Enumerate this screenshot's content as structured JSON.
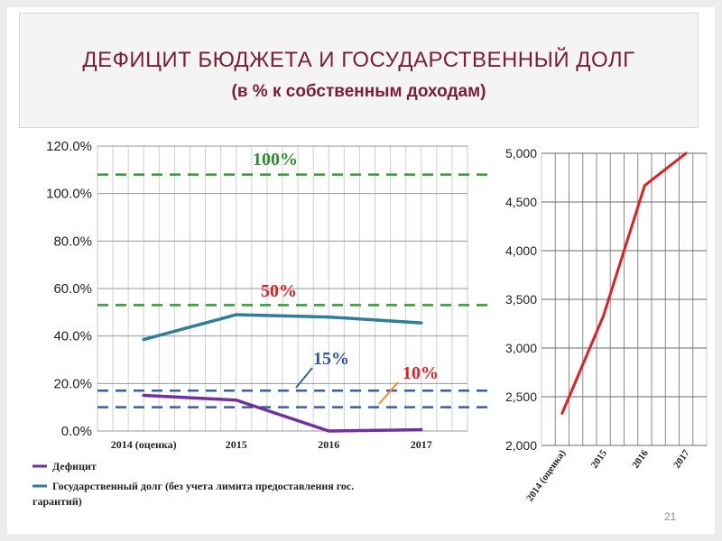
{
  "title": {
    "line1": "ДЕФИЦИТ БЮДЖЕТА И ГОСУДАРСТВЕННЫЙ ДОЛГ",
    "line2": "(в % к собственным доходам)"
  },
  "page_number": "21",
  "colors": {
    "title": "#7a1d38",
    "deficit": "#7030a0",
    "debt": "#2e7d9c",
    "green_dash": "#2ca02c",
    "blue_dash": "#3a5f9e",
    "right_line": "#e02020",
    "label_red": "#e02020",
    "label_blue": "#2f5597",
    "label_green": "#2e8b2e",
    "arrow_orange": "#f08a2a"
  },
  "chart_data": [
    {
      "type": "line",
      "categories": [
        "2014 (оценка)",
        "2015",
        "2016",
        "2017"
      ],
      "series": [
        {
          "name": "Дефицит",
          "color": "#7030a0",
          "values": [
            15,
            13,
            0,
            0.5
          ]
        },
        {
          "name": "Государственный долг (без учета лимита предоставления гос. гарантий)",
          "color": "#2e7d9c",
          "values": [
            38.5,
            49,
            48,
            45.5
          ]
        }
      ],
      "yticks": [
        "0.0%",
        "20.0%",
        "40.0%",
        "60.0%",
        "80.0%",
        "100.0%",
        "120.0%"
      ],
      "ylim": [
        0,
        120
      ],
      "reference_lines": [
        {
          "label": "100%",
          "value": 108,
          "color": "#2ca02c"
        },
        {
          "label": "50%",
          "value": 53,
          "color": "#2ca02c"
        },
        {
          "label": "15%",
          "value": 17,
          "color": "#3a5f9e"
        },
        {
          "label": "10%",
          "value": 10,
          "color": "#3a5f9e"
        }
      ],
      "grid": true,
      "legend_position": "bottom-left"
    },
    {
      "type": "line",
      "categories": [
        "2014 (оценка)",
        "2015",
        "2016",
        "2017"
      ],
      "series": [
        {
          "color": "#e02020",
          "values": [
            2330,
            3330,
            4670,
            5000
          ]
        }
      ],
      "yticks": [
        "2,000",
        "2,500",
        "3,000",
        "3,500",
        "4,000",
        "4,500",
        "5,000"
      ],
      "ylim": [
        2000,
        5000
      ],
      "grid": true,
      "legend_position": "none"
    }
  ]
}
